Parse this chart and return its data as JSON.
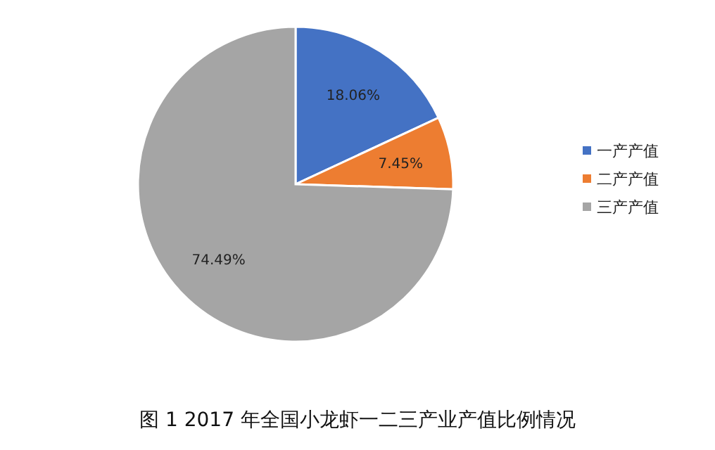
{
  "chart_data": {
    "type": "pie",
    "title": "图 1 2017 年全国小龙虾一二三产业产值比例情况",
    "categories": [
      "一产产值",
      "二产产值",
      "三产产值"
    ],
    "values": [
      18.06,
      7.45,
      74.49
    ],
    "value_labels": [
      "18.06%",
      "7.45%",
      "74.49%"
    ],
    "colors": [
      "#4472c4",
      "#ed7d31",
      "#a5a5a5"
    ],
    "legend": "right"
  }
}
